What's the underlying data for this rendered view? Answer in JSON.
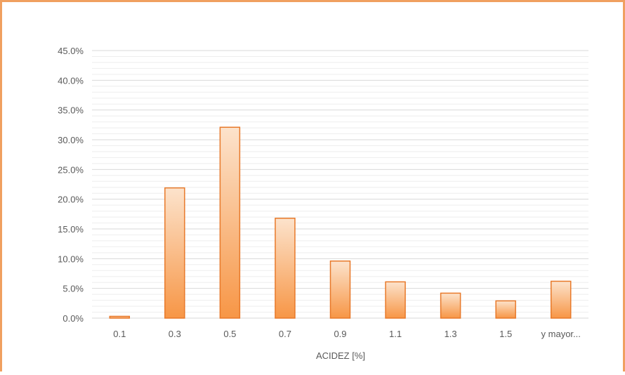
{
  "chart_data": {
    "type": "bar",
    "xlabel": "ACIDEZ [%]",
    "ylabel": "",
    "categories": [
      "0.1",
      "0.3",
      "0.5",
      "0.7",
      "0.9",
      "1.1",
      "1.3",
      "1.5",
      "y mayor..."
    ],
    "values": [
      0.3,
      21.9,
      32.1,
      16.8,
      9.6,
      6.1,
      4.2,
      2.9,
      6.2
    ],
    "ylim": [
      0,
      45
    ],
    "yticks": [
      "0.0%",
      "5.0%",
      "10.0%",
      "15.0%",
      "20.0%",
      "25.0%",
      "30.0%",
      "35.0%",
      "40.0%",
      "45.0%"
    ],
    "grid": true,
    "colors": {
      "bar_top": "#fce3cc",
      "bar_bottom": "#f79646",
      "bar_border": "#e8792a",
      "grid": "#e3e3e3",
      "frame": "#f0a060"
    }
  }
}
